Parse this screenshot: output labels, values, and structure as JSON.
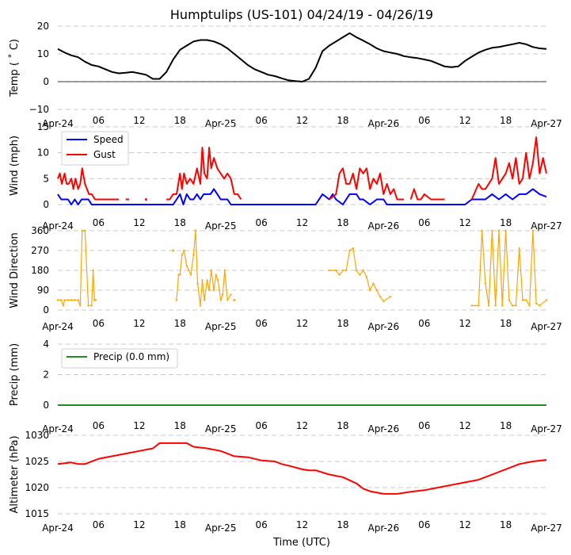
{
  "chart_data": [
    {
      "type": "line",
      "title": "Humptulips (US-101) 04/24/19 - 04/26/19",
      "ylabel": "Temp ($^\\circ$C)",
      "ylabel_display": "Temp ( ˚ C)",
      "ylim": [
        -10,
        20
      ],
      "yticks": [
        -10,
        0,
        10,
        20
      ],
      "xlabel": "",
      "x_tick_labels": [
        "Apr-24",
        "06",
        "12",
        "18",
        "Apr-25",
        "06",
        "12",
        "18",
        "Apr-26",
        "06",
        "12",
        "18",
        "Apr-27"
      ],
      "x_hours": [
        0,
        72
      ],
      "grid": "y-dashed",
      "zero_line": true,
      "series": [
        {
          "name": "Temp",
          "color": "#000000",
          "x": [
            0,
            1,
            2,
            3,
            4,
            5,
            6,
            7,
            8,
            9,
            10,
            11,
            12,
            13,
            14,
            15,
            16,
            17,
            18,
            19,
            20,
            21,
            22,
            23,
            24,
            25,
            26,
            27,
            28,
            29,
            30,
            31,
            32,
            33,
            34,
            35,
            36,
            37,
            38,
            39,
            40,
            41,
            42,
            43,
            44,
            45,
            46,
            47,
            48,
            49,
            50,
            51,
            52,
            53,
            54,
            55,
            56,
            57,
            58,
            59,
            60,
            61,
            62,
            63,
            64,
            65,
            66,
            67,
            68,
            69,
            70,
            71,
            72
          ],
          "values": [
            11.8,
            10.5,
            9.5,
            8.8,
            7.2,
            6.0,
            5.5,
            4.5,
            3.5,
            3.0,
            3.2,
            3.5,
            3.0,
            2.5,
            1.0,
            1.0,
            3.5,
            8.0,
            11.5,
            13.0,
            14.5,
            15.0,
            15.0,
            14.5,
            13.5,
            12.0,
            10.0,
            8.0,
            6.0,
            4.5,
            3.5,
            2.5,
            2.0,
            1.2,
            0.5,
            0.2,
            0.0,
            1.0,
            5.0,
            11.0,
            13.0,
            14.5,
            16.0,
            17.5,
            16.0,
            14.8,
            13.5,
            12.0,
            11.0,
            10.5,
            10.0,
            9.2,
            8.8,
            8.5,
            8.0,
            7.5,
            6.5,
            5.5,
            5.2,
            5.5,
            7.5,
            9.0,
            10.5,
            11.5,
            12.2,
            12.5,
            13.0,
            13.5,
            14.0,
            13.5,
            12.5,
            12.0,
            11.8
          ]
        }
      ]
    },
    {
      "type": "line",
      "ylabel": "Wind (mph)",
      "ylim": [
        0,
        15
      ],
      "yticks": [
        0,
        5,
        10,
        15
      ],
      "x_tick_labels": [
        "Apr-24",
        "06",
        "12",
        "18",
        "Apr-25",
        "06",
        "12",
        "18",
        "Apr-26",
        "06",
        "12",
        "18",
        "Apr-27"
      ],
      "legend": "upper-left",
      "grid": "y-dashed",
      "series": [
        {
          "name": "Speed",
          "color": "#0000ff",
          "x": [
            0,
            0.5,
            1,
            1.5,
            2,
            2.5,
            3,
            3.5,
            4,
            4.5,
            5,
            6,
            10,
            17,
            17.5,
            18,
            18.5,
            19,
            19.5,
            20,
            20.5,
            21,
            21.5,
            22,
            22.5,
            23,
            23.5,
            24,
            24.5,
            25,
            25.5,
            26,
            30,
            38,
            39,
            40,
            40.5,
            41,
            42,
            43,
            44,
            44.5,
            45,
            46,
            47,
            48,
            48.5,
            49,
            50,
            55,
            60,
            61,
            62,
            63,
            64,
            65,
            66,
            67,
            68,
            69,
            70,
            71,
            72
          ],
          "values": [
            2,
            1,
            1,
            1,
            0,
            1,
            0,
            1,
            1,
            1,
            0,
            0,
            0,
            0,
            1,
            2,
            0,
            2,
            1,
            1,
            2,
            1,
            2,
            2,
            2,
            3,
            2,
            1,
            1,
            1,
            0,
            0,
            0,
            0,
            2,
            1,
            2,
            1,
            0,
            2,
            2,
            1,
            1,
            0,
            1,
            1,
            0,
            0,
            0,
            0,
            0,
            1,
            1,
            1,
            2,
            1,
            2,
            1,
            2,
            2,
            3,
            2,
            1.5
          ]
        },
        {
          "name": "Gust",
          "color": "#ff0000",
          "segments": [
            {
              "x": [
                0,
                0.3,
                0.6,
                1,
                1.3,
                1.6,
                2,
                2.3,
                2.6,
                3,
                3.3,
                3.6,
                4,
                4.3,
                4.6,
                5,
                5.5,
                6,
                6.5,
                7,
                7.5,
                8,
                8.5,
                9
              ],
              "values": [
                5,
                6,
                4,
                6,
                4,
                4,
                5,
                3,
                5,
                3,
                4,
                7,
                4,
                3,
                2,
                2,
                1,
                1,
                1,
                1,
                1,
                1,
                1,
                1
              ]
            },
            {
              "x": [
                10,
                10.5
              ],
              "values": [
                1,
                1
              ]
            },
            {
              "x": [
                13
              ],
              "values": [
                1
              ]
            },
            {
              "x": [
                16,
                16.5,
                17,
                17.5,
                18,
                18.3,
                18.6,
                19,
                19.5,
                20,
                20.5,
                21,
                21.3,
                21.6,
                22,
                22.3,
                22.6,
                23,
                23.5,
                24,
                24.5,
                25,
                25.5,
                26,
                26.5,
                27
              ],
              "values": [
                1,
                1,
                2,
                2,
                6,
                3,
                6,
                4,
                5,
                4,
                7,
                4,
                11,
                6,
                5,
                11,
                7,
                9,
                7,
                6,
                5,
                6,
                5,
                2,
                2,
                1
              ]
            },
            {
              "x": [
                40,
                41,
                41.5,
                42,
                42.5,
                43,
                43.5,
                44,
                44.5,
                45,
                45.5,
                46,
                46.5,
                47,
                47.5,
                48,
                48.5,
                49,
                49.5,
                50,
                50.5,
                51
              ],
              "values": [
                1,
                2,
                6,
                7,
                4,
                4,
                6,
                3,
                7,
                6,
                7,
                3,
                5,
                4,
                6,
                2,
                4,
                2,
                3,
                1,
                1,
                1
              ]
            },
            {
              "x": [
                52,
                52.5,
                53,
                53.5,
                54,
                55,
                56,
                57
              ],
              "values": [
                1,
                3,
                1,
                1,
                2,
                1,
                1,
                1
              ]
            },
            {
              "x": [
                61,
                62,
                62.5,
                63,
                64,
                64.5,
                65,
                65.5,
                66,
                66.5,
                67,
                67.5,
                68,
                68.5,
                69,
                69.5,
                70,
                70.5,
                71,
                71.5,
                72
              ],
              "values": [
                1,
                4,
                3,
                3,
                5,
                9,
                4,
                5,
                6,
                8,
                5,
                9,
                4,
                5,
                10,
                5,
                8,
                13,
                6,
                9,
                6
              ]
            }
          ]
        }
      ]
    },
    {
      "type": "scatter-line",
      "ylabel": "Wind Direction",
      "ylim": [
        0,
        360
      ],
      "yticks": [
        0,
        90,
        180,
        270,
        360
      ],
      "x_tick_labels": [
        "Apr-24",
        "06",
        "12",
        "18",
        "Apr-25",
        "06",
        "12",
        "18",
        "Apr-26",
        "06",
        "12",
        "18",
        "Apr-27"
      ],
      "grid": "y-dashed",
      "series": [
        {
          "name": "Direction",
          "color": "#ffa500",
          "segments": [
            {
              "x": [
                0,
                0.5,
                0.8,
                1,
                1.5,
                2,
                2.5,
                3,
                3.3,
                3.6,
                4,
                4.5,
                5,
                5.2,
                5.4,
                5.6
              ],
              "values": [
                45,
                45,
                20,
                45,
                45,
                45,
                45,
                45,
                20,
                360,
                360,
                20,
                20,
                180,
                45,
                45
              ]
            },
            {
              "x": [
                17
              ],
              "values": [
                270
              ]
            },
            {
              "x": [
                17.5,
                17.8,
                18,
                18.3,
                18.6,
                19,
                19.3,
                19.6,
                20,
                20.3,
                20.6,
                21,
                21.3,
                21.6,
                22,
                22.3,
                22.6,
                23,
                23.3,
                23.6,
                24,
                24.3,
                24.6,
                25,
                25.5
              ],
              "values": [
                45,
                160,
                160,
                250,
                270,
                200,
                180,
                160,
                250,
                360,
                120,
                20,
                135,
                45,
                135,
                90,
                180,
                90,
                160,
                135,
                45,
                70,
                180,
                45,
                70
              ]
            },
            {
              "x": [
                26
              ],
              "values": [
                45
              ]
            },
            {
              "x": [
                40,
                41,
                41.5,
                42,
                42.5,
                43,
                43.5,
                44,
                44.5,
                45,
                45.5,
                46,
                46.5,
                47,
                47.5,
                48,
                49
              ],
              "values": [
                180,
                180,
                160,
                180,
                180,
                270,
                280,
                180,
                160,
                180,
                150,
                90,
                120,
                90,
                60,
                40,
                60
              ]
            },
            {
              "x": [
                61,
                62,
                62.5,
                63,
                63.5,
                64,
                64.5,
                65,
                65.5,
                66,
                66.5,
                67,
                67.5,
                68,
                68.5,
                69,
                69.5,
                70,
                70.5,
                71,
                72
              ],
              "values": [
                20,
                20,
                360,
                120,
                20,
                360,
                20,
                360,
                20,
                360,
                45,
                20,
                20,
                280,
                45,
                45,
                20,
                360,
                30,
                20,
                45
              ]
            }
          ]
        }
      ]
    },
    {
      "type": "line",
      "ylabel": "Precip (mm)",
      "ylim": [
        0,
        5
      ],
      "yticks": [
        0,
        2,
        4
      ],
      "x_tick_labels": [
        "Apr-24",
        "06",
        "12",
        "18",
        "Apr-25",
        "06",
        "12",
        "18",
        "Apr-26",
        "06",
        "12",
        "18",
        "Apr-27"
      ],
      "legend": "upper-left",
      "grid": "y-dashed",
      "series": [
        {
          "name": "Precip (0.0 mm)",
          "color": "#228b22",
          "x": [
            0,
            72
          ],
          "values": [
            0,
            0
          ]
        }
      ]
    },
    {
      "type": "line",
      "ylabel": "Altimeter (hPa)",
      "xlabel": "Time (UTC)",
      "ylim": [
        1015,
        1030
      ],
      "yticks": [
        1015,
        1020,
        1025,
        1030
      ],
      "x_tick_labels": [
        "Apr-24",
        "06",
        "12",
        "18",
        "Apr-25",
        "06",
        "12",
        "18",
        "Apr-26",
        "06",
        "12",
        "18",
        "Apr-27"
      ],
      "grid": "y-dashed",
      "series": [
        {
          "name": "Altimeter",
          "color": "#ff0000",
          "x": [
            0,
            2,
            3,
            4,
            6,
            8,
            10,
            12,
            14,
            15,
            16,
            18,
            19,
            20,
            22,
            24,
            25,
            26,
            28,
            30,
            32,
            33,
            34,
            36,
            37,
            38,
            40,
            42,
            44,
            45,
            46,
            48,
            50,
            52,
            54,
            56,
            58,
            60,
            62,
            64,
            66,
            68,
            70,
            72
          ],
          "values": [
            1024.5,
            1024.8,
            1024.5,
            1024.5,
            1025.5,
            1026.0,
            1026.5,
            1027.0,
            1027.5,
            1028.5,
            1028.5,
            1028.5,
            1028.5,
            1027.8,
            1027.5,
            1027.0,
            1026.5,
            1026.0,
            1025.8,
            1025.2,
            1025.0,
            1024.5,
            1024.2,
            1023.5,
            1023.3,
            1023.3,
            1022.5,
            1022.0,
            1020.8,
            1019.8,
            1019.3,
            1018.8,
            1018.8,
            1019.2,
            1019.5,
            1020.0,
            1020.5,
            1021.0,
            1021.5,
            1022.5,
            1023.5,
            1024.5,
            1025.0,
            1025.3
          ]
        }
      ]
    }
  ]
}
